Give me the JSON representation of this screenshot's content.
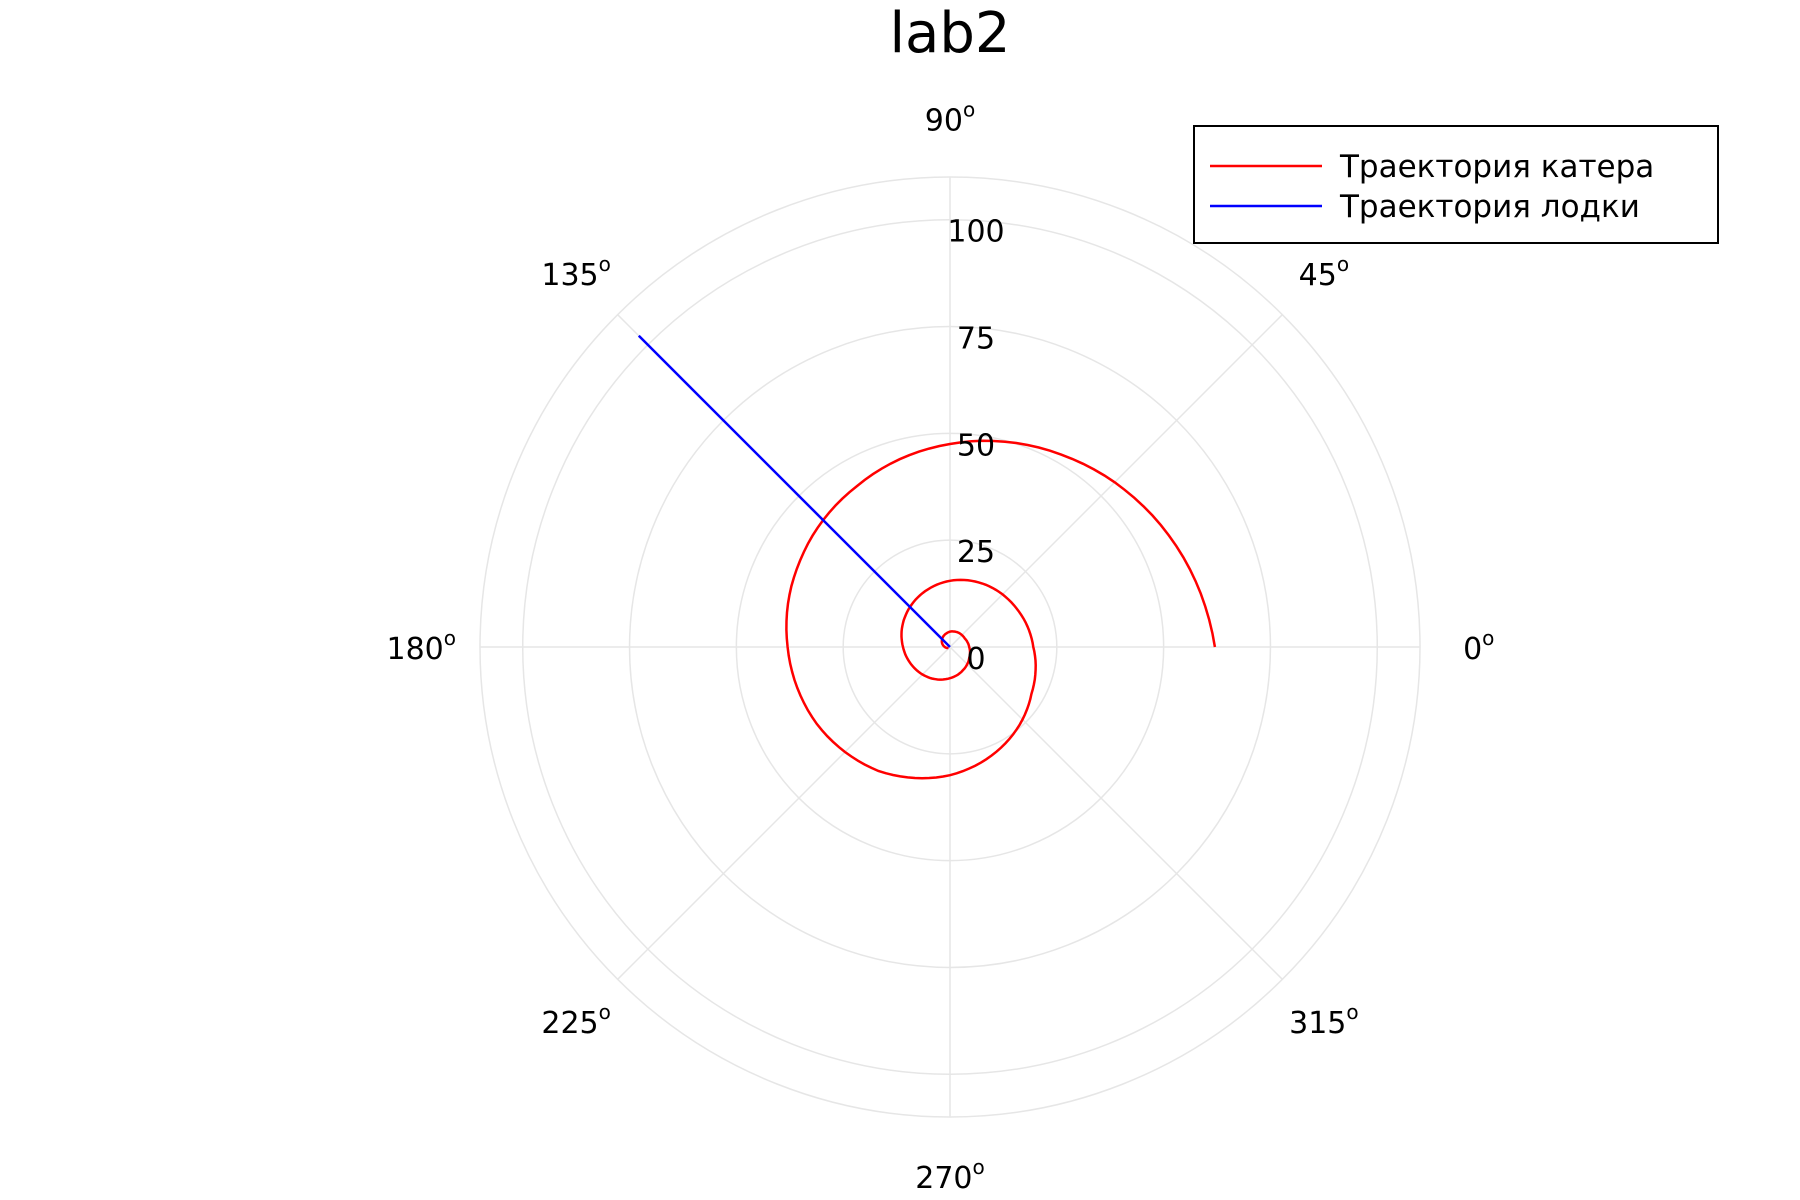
{
  "chart_data": {
    "type": "polar-line",
    "title": "lab2",
    "r_ticks": [
      0,
      25,
      50,
      75,
      100
    ],
    "r_max": 110,
    "theta_ticks": [
      0,
      45,
      90,
      135,
      180,
      225,
      270,
      315
    ],
    "theta_tick_labels": [
      "0",
      "45",
      "90",
      "135",
      "180",
      "225",
      "270",
      "315"
    ],
    "degree_mark": "o",
    "grid": true,
    "legend_position": "top-right",
    "series": [
      {
        "name": "Траектория катера",
        "color": "#ff0000",
        "kind": "spiral",
        "points": [
          [
            0,
            62
          ],
          [
            30,
            57
          ],
          [
            60,
            52
          ],
          [
            90,
            47.5
          ],
          [
            120,
            43.5
          ],
          [
            150,
            40.5
          ],
          [
            180,
            38.0
          ],
          [
            210,
            36.0
          ],
          [
            240,
            33.5
          ],
          [
            270,
            30.0
          ],
          [
            300,
            26.0
          ],
          [
            330,
            22.0
          ],
          [
            360,
            19.5
          ],
          [
            390,
            18.0
          ],
          [
            420,
            16.8
          ],
          [
            450,
            15.5
          ],
          [
            480,
            14.0
          ],
          [
            510,
            12.5
          ],
          [
            540,
            11.0
          ],
          [
            570,
            9.7
          ],
          [
            600,
            8.5
          ],
          [
            630,
            7.3
          ],
          [
            660,
            6.2
          ],
          [
            690,
            5.2
          ],
          [
            720,
            4.5
          ],
          [
            750,
            4.0
          ],
          [
            780,
            3.9
          ],
          [
            810,
            3.6
          ],
          [
            840,
            3.0
          ],
          [
            870,
            2.2
          ],
          [
            900,
            1.2
          ],
          [
            930,
            0.4
          ]
        ]
      },
      {
        "name": "Траектория лодки",
        "color": "#0000ff",
        "kind": "ray",
        "points": [
          [
            135,
            0
          ],
          [
            135,
            103
          ]
        ]
      }
    ]
  }
}
